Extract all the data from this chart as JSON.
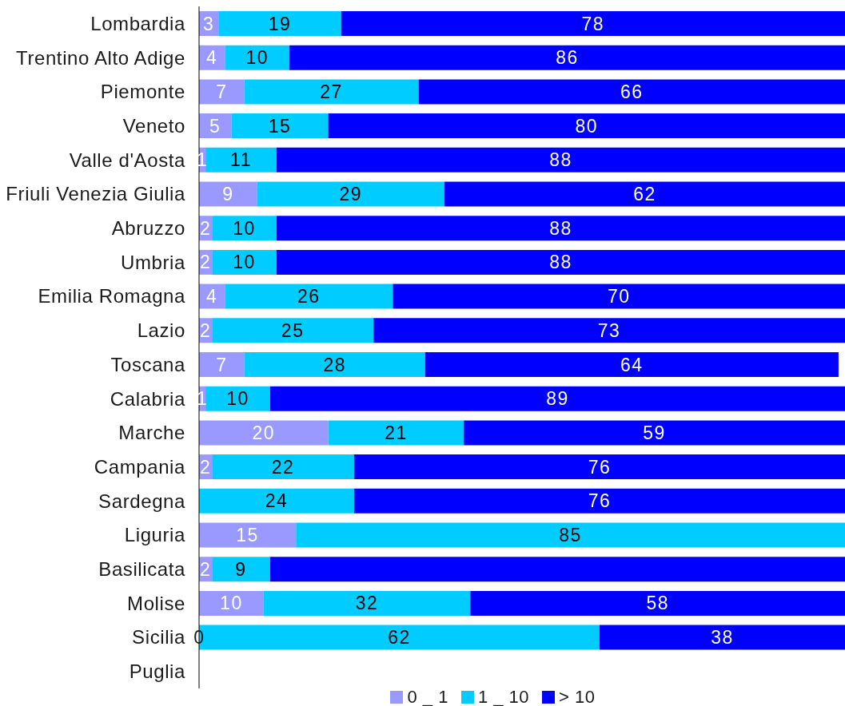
{
  "chart_data": {
    "type": "bar",
    "orientation": "horizontal",
    "stacked": true,
    "categories": [
      "Lombardia",
      "Trentino Alto Adige",
      "Piemonte",
      "Veneto",
      "Valle d'Aosta",
      "Friuli Venezia Giulia",
      "Abruzzo",
      "Umbria",
      "Emilia Romagna",
      "Lazio",
      "Toscana",
      "Calabria",
      "Marche",
      "Campania",
      "Sardegna",
      "Liguria",
      "Basilicata",
      "Molise",
      "Sicilia",
      "Puglia"
    ],
    "xlim": [
      0,
      100
    ],
    "tick_labels": "y",
    "legend": "bottom",
    "series": [
      {
        "name": "0 _ 1",
        "color": "#9999ff",
        "values": [
          3,
          4,
          7,
          5,
          1,
          9,
          2,
          2,
          4,
          2,
          7,
          1,
          20,
          2,
          null,
          15,
          2,
          10,
          0,
          null
        ],
        "value_labels": [
          "3",
          "4",
          "7",
          "5",
          "1",
          "9",
          "2",
          "2",
          "4",
          "2",
          "7",
          "1",
          "20",
          "2",
          null,
          "15",
          "2",
          "10",
          "0",
          null
        ]
      },
      {
        "name": "1 _ 10",
        "color": "#00ccff",
        "values": [
          19,
          10,
          27,
          15,
          11,
          29,
          10,
          10,
          26,
          25,
          28,
          10,
          21,
          22,
          24,
          85,
          9,
          32,
          62,
          null
        ],
        "value_labels": [
          "19",
          "10",
          "27",
          "15",
          "11",
          "29",
          "10",
          "10",
          "26",
          "25",
          "28",
          "10",
          "21",
          "22",
          "24",
          "85",
          "9",
          "32",
          "62",
          null
        ]
      },
      {
        "name": "> 10",
        "color": "#0000ff",
        "values": [
          78,
          86,
          66,
          80,
          88,
          62,
          88,
          88,
          70,
          73,
          64,
          89,
          59,
          76,
          76,
          null,
          89,
          58,
          38,
          null
        ],
        "value_labels": [
          "78",
          "86",
          "66",
          "80",
          "88",
          "62",
          "88",
          "88",
          "70",
          "73",
          "64",
          "89",
          "59",
          "76",
          "76",
          null,
          null,
          "58",
          "38",
          null
        ]
      }
    ]
  }
}
